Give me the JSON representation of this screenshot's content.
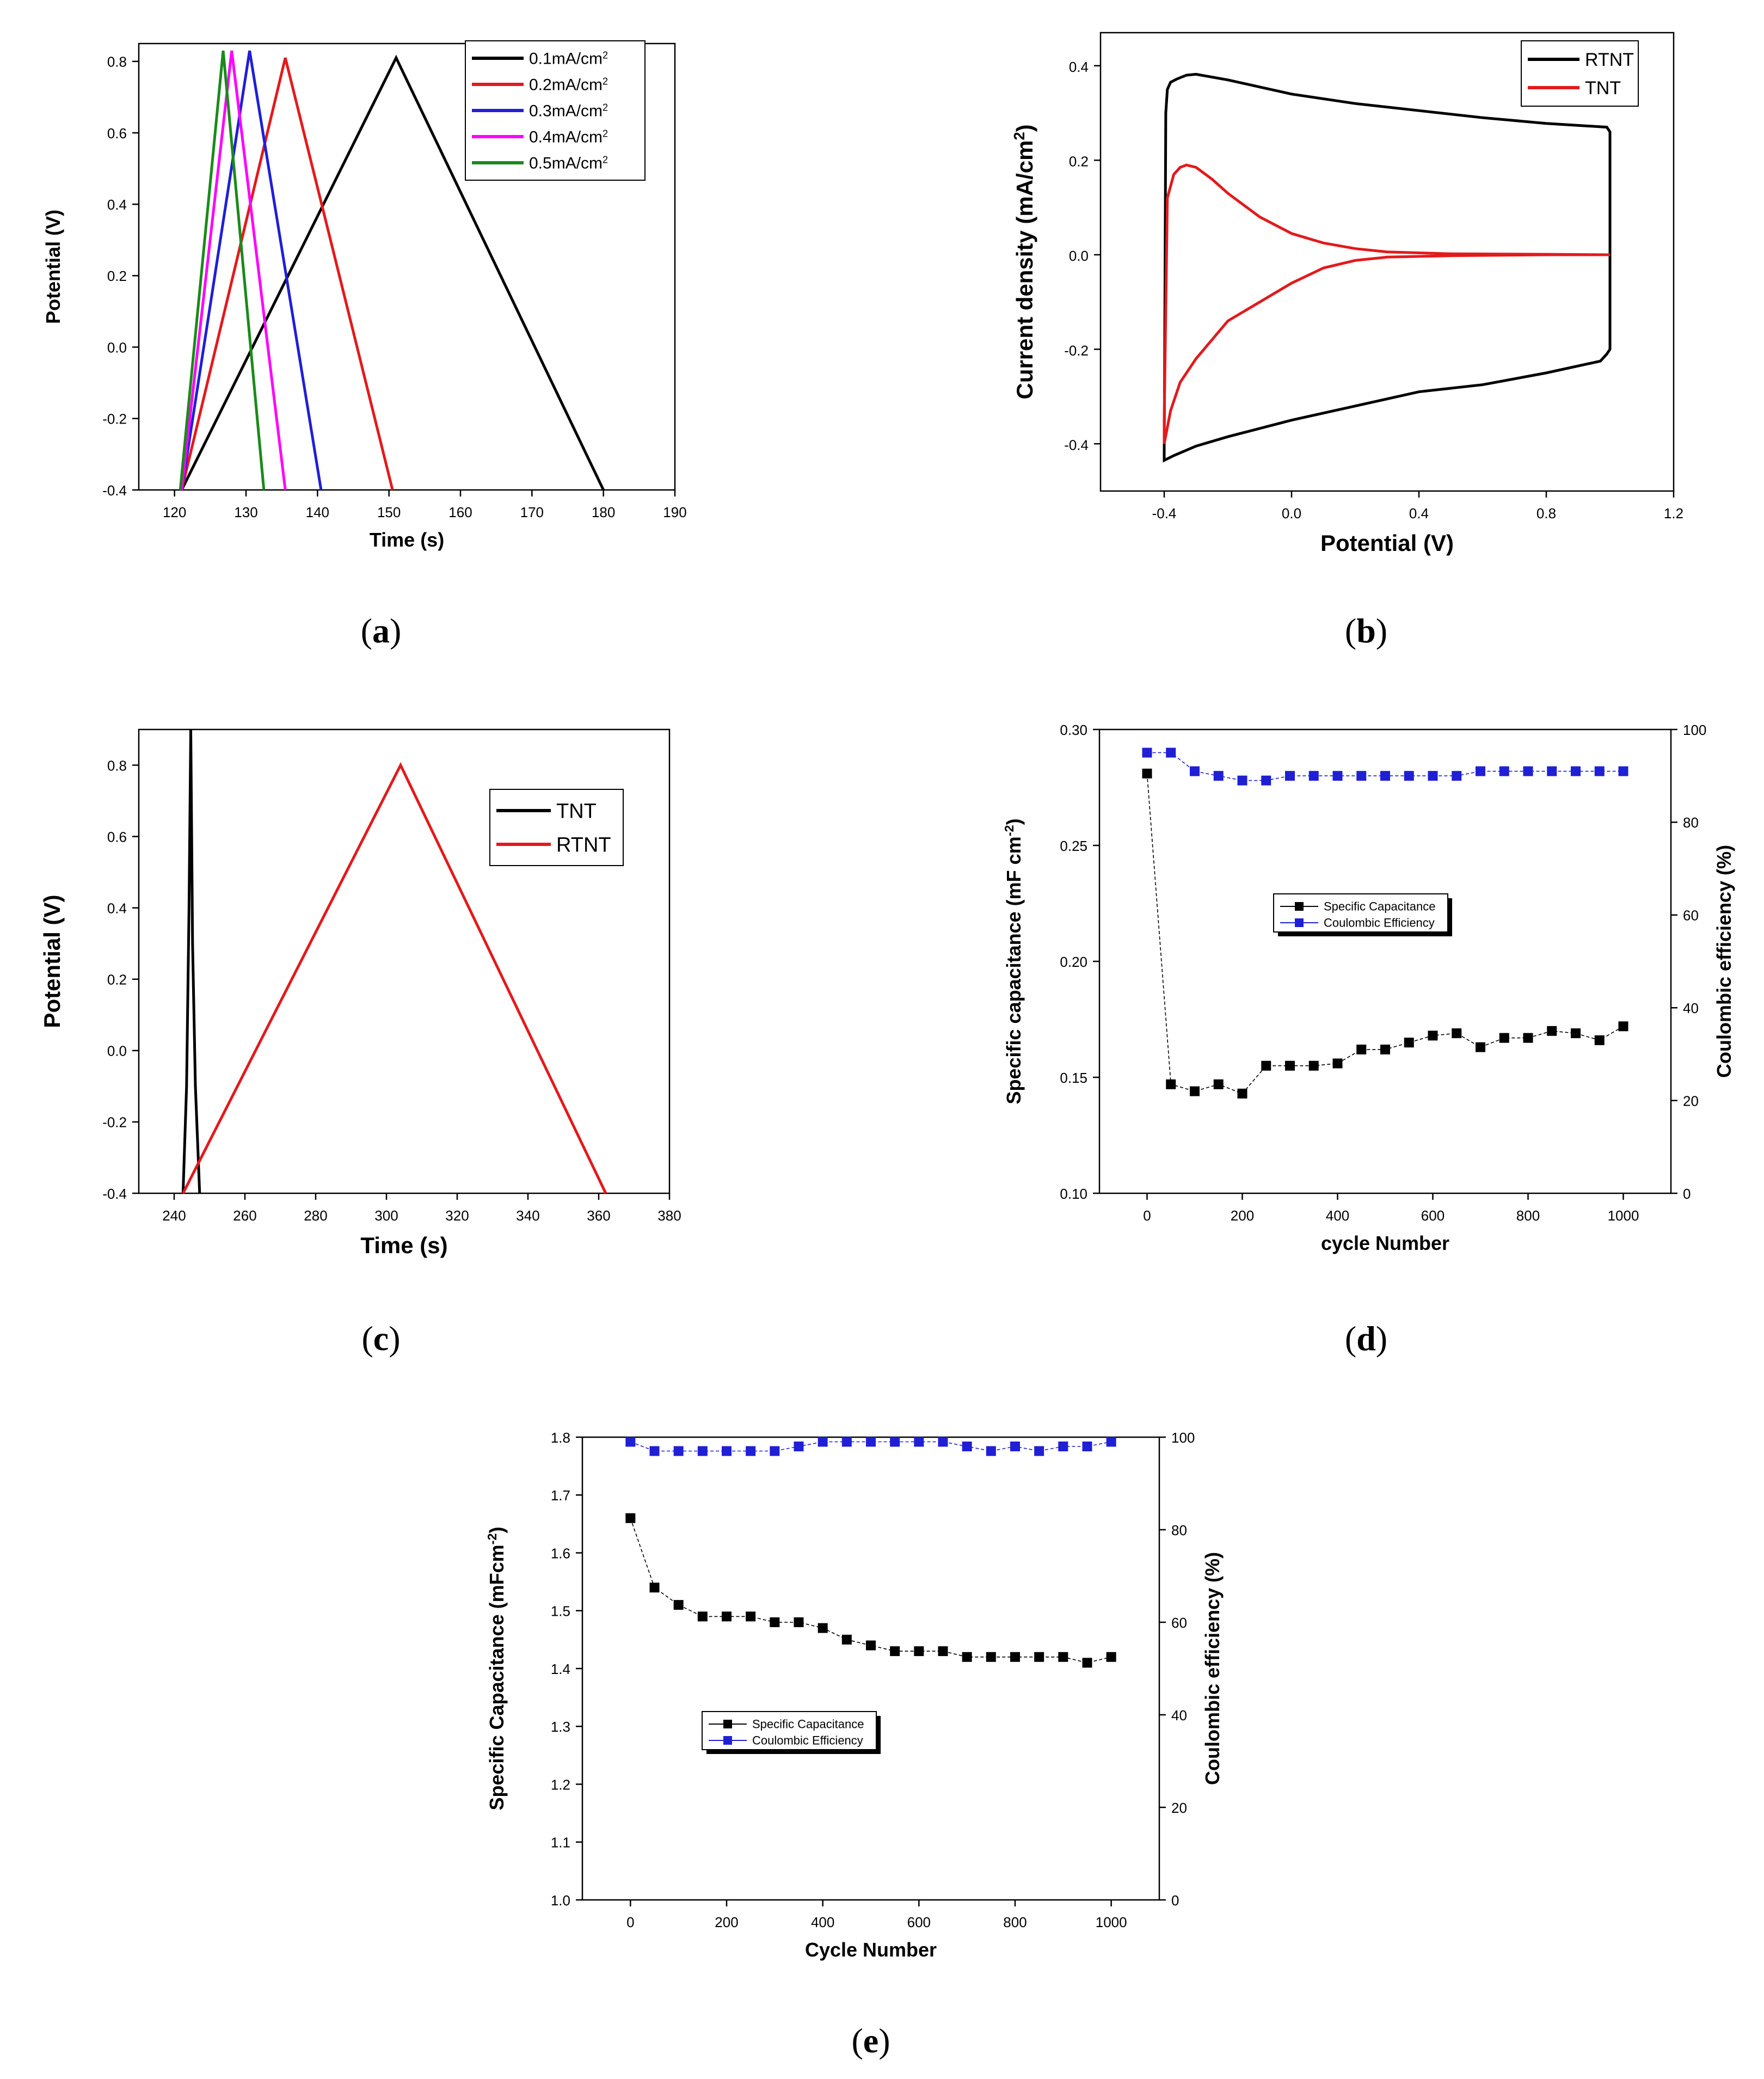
{
  "chart_data": [
    {
      "id": "a",
      "type": "line",
      "caption": "a",
      "xlabel": "Time (s)",
      "ylabel": "Potential (V)",
      "xlim": [
        115,
        190
      ],
      "ylim": [
        -0.4,
        0.85
      ],
      "xticks": [
        120,
        130,
        140,
        150,
        160,
        170,
        180,
        190
      ],
      "yticks": [
        -0.4,
        -0.2,
        0.0,
        0.2,
        0.4,
        0.6,
        0.8
      ],
      "xtick_labels": [
        "120",
        "130",
        "140",
        "150",
        "160",
        "170",
        "180",
        "190"
      ],
      "ytick_labels": [
        "-0.4",
        "-0.2",
        "0.0",
        "0.2",
        "0.4",
        "0.6",
        "0.8"
      ],
      "legend_position": "top-right",
      "series": [
        {
          "name": "0.1mA/cm",
          "sup": "2",
          "color": "#000000",
          "x": [
            121,
            151,
            180
          ],
          "y": [
            -0.4,
            0.81,
            -0.4
          ]
        },
        {
          "name": "0.2mA/cm",
          "sup": "2",
          "color": "#e31a1c",
          "x": [
            121,
            135.5,
            150.5
          ],
          "y": [
            -0.4,
            0.81,
            -0.4
          ]
        },
        {
          "name": "0.3mA/cm",
          "sup": "2",
          "color": "#1f1fd6",
          "x": [
            121,
            130.5,
            140.5
          ],
          "y": [
            -0.4,
            0.83,
            -0.4
          ]
        },
        {
          "name": "0.4mA/cm",
          "sup": "2",
          "color": "#ff00ff",
          "x": [
            121,
            128,
            135.5
          ],
          "y": [
            -0.4,
            0.83,
            -0.4
          ]
        },
        {
          "name": "0.5mA/cm",
          "sup": "2",
          "color": "#1a8a1a",
          "x": [
            120.8,
            126.8,
            132.5
          ],
          "y": [
            -0.4,
            0.83,
            -0.4
          ]
        }
      ]
    },
    {
      "id": "b",
      "type": "line",
      "caption": "b",
      "xlabel": "Potential (V)",
      "ylabel": "Current density (mA/cm",
      "ylabel_sup": "2",
      "ylabel_end": ")",
      "xlim": [
        -0.6,
        1.2
      ],
      "ylim": [
        -0.5,
        0.47
      ],
      "xticks": [
        -0.4,
        0.0,
        0.4,
        0.8,
        1.2
      ],
      "yticks": [
        -0.4,
        -0.2,
        0.0,
        0.2,
        0.4
      ],
      "xtick_labels": [
        "-0.4",
        "0.0",
        "0.4",
        "0.8",
        "1.2"
      ],
      "ytick_labels": [
        "-0.4",
        "-0.2",
        "0.0",
        "0.2",
        "0.4"
      ],
      "legend_position": "top-right",
      "series": [
        {
          "name": "RTNT",
          "color": "#000000",
          "x": [
            -0.4,
            -0.395,
            -0.39,
            -0.38,
            -0.36,
            -0.33,
            -0.3,
            -0.2,
            -0.1,
            0.0,
            0.2,
            0.4,
            0.6,
            0.8,
            0.99,
            1.0,
            1.0,
            0.99,
            0.97,
            0.8,
            0.6,
            0.4,
            0.2,
            0.0,
            -0.2,
            -0.3,
            -0.37,
            -0.4,
            -0.4
          ],
          "y": [
            -0.42,
            0.3,
            0.35,
            0.365,
            0.372,
            0.38,
            0.382,
            0.37,
            0.355,
            0.34,
            0.32,
            0.305,
            0.29,
            0.278,
            0.27,
            0.26,
            -0.2,
            -0.21,
            -0.225,
            -0.25,
            -0.275,
            -0.29,
            -0.32,
            -0.35,
            -0.385,
            -0.405,
            -0.425,
            -0.435,
            -0.42
          ]
        },
        {
          "name": "TNT",
          "color": "#e31a1c",
          "x": [
            -0.4,
            -0.39,
            -0.37,
            -0.35,
            -0.33,
            -0.3,
            -0.25,
            -0.2,
            -0.1,
            0.0,
            0.1,
            0.2,
            0.3,
            0.5,
            0.8,
            1.0,
            0.8,
            0.5,
            0.3,
            0.2,
            0.1,
            0.0,
            -0.1,
            -0.2,
            -0.3,
            -0.35,
            -0.38,
            -0.4,
            -0.4
          ],
          "y": [
            -0.35,
            0.12,
            0.17,
            0.185,
            0.19,
            0.185,
            0.16,
            0.13,
            0.08,
            0.045,
            0.025,
            0.013,
            0.006,
            0.002,
            0.001,
            0.0,
            0.0,
            -0.002,
            -0.005,
            -0.012,
            -0.028,
            -0.06,
            -0.1,
            -0.14,
            -0.22,
            -0.27,
            -0.33,
            -0.4,
            -0.35
          ]
        }
      ]
    },
    {
      "id": "c",
      "type": "line",
      "caption": "c",
      "xlabel": "Time (s)",
      "ylabel": "Potential (V)",
      "xlim": [
        230,
        380
      ],
      "ylim": [
        -0.4,
        0.9
      ],
      "xticks": [
        240,
        260,
        280,
        300,
        320,
        340,
        360,
        380
      ],
      "yticks": [
        -0.4,
        -0.2,
        0.0,
        0.2,
        0.4,
        0.6,
        0.8
      ],
      "xtick_labels": [
        "240",
        "260",
        "280",
        "300",
        "320",
        "340",
        "360",
        "380"
      ],
      "ytick_labels": [
        "-0.4",
        "-0.2",
        "0.0",
        "0.2",
        "0.4",
        "0.6",
        "0.8"
      ],
      "legend_position": "top-right",
      "series": [
        {
          "name": "TNT",
          "color": "#000000",
          "x": [
            242.5,
            243.5,
            244.2,
            244.7,
            245.2,
            246,
            247.2
          ],
          "y": [
            -0.4,
            -0.1,
            0.4,
            0.9,
            0.3,
            -0.1,
            -0.4
          ]
        },
        {
          "name": "RTNT",
          "color": "#e31a1c",
          "x": [
            242.5,
            304,
            362
          ],
          "y": [
            -0.4,
            0.8,
            -0.4
          ]
        }
      ]
    },
    {
      "id": "d",
      "type": "line",
      "caption": "d",
      "xlabel": "cycle Number",
      "ylabel": "Specific capacitance (mF cm",
      "ylabel_sup": "-2",
      "ylabel_end": ")",
      "y2label": "Coulombic efficiency (%)",
      "xlim": [
        -100,
        1100
      ],
      "ylim": [
        0.1,
        0.3
      ],
      "y2lim": [
        0,
        100
      ],
      "xticks": [
        0,
        200,
        400,
        600,
        800,
        1000
      ],
      "yticks": [
        0.1,
        0.15,
        0.2,
        0.25,
        0.3
      ],
      "y2ticks": [
        0,
        20,
        40,
        60,
        80,
        100
      ],
      "xtick_labels": [
        "0",
        "200",
        "400",
        "600",
        "800",
        "1000"
      ],
      "ytick_labels": [
        "0.10",
        "0.15",
        "0.20",
        "0.25",
        "0.30"
      ],
      "y2tick_labels": [
        "0",
        "20",
        "40",
        "60",
        "80",
        "100"
      ],
      "legend_position": "center",
      "x": [
        0,
        50,
        100,
        150,
        200,
        250,
        300,
        350,
        400,
        450,
        500,
        550,
        600,
        650,
        700,
        750,
        800,
        850,
        900,
        950,
        1000
      ],
      "series": [
        {
          "name": "Specific Capacitance",
          "axis": "left",
          "color": "#000000",
          "values": [
            0.281,
            0.147,
            0.144,
            0.147,
            0.143,
            0.155,
            0.155,
            0.155,
            0.156,
            0.162,
            0.162,
            0.165,
            0.168,
            0.169,
            0.163,
            0.167,
            0.167,
            0.17,
            0.169,
            0.166,
            0.172
          ]
        },
        {
          "name": "Coulombic Efficiency",
          "axis": "right",
          "color": "#1f1fd6",
          "values": [
            95,
            95,
            91,
            90,
            89,
            89,
            90,
            90,
            90,
            90,
            90,
            90,
            90,
            90,
            91,
            91,
            91,
            91,
            91,
            91,
            91
          ]
        }
      ]
    },
    {
      "id": "e",
      "type": "line",
      "caption": "e",
      "xlabel": "Cycle Number",
      "ylabel": "Specific Capacitance (mFcm",
      "ylabel_sup": "-2",
      "ylabel_end": ")",
      "y2label": "Coulombic efficiency (%)",
      "xlim": [
        -100,
        1100
      ],
      "ylim": [
        1.0,
        1.8
      ],
      "y2lim": [
        0,
        100
      ],
      "xticks": [
        0,
        200,
        400,
        600,
        800,
        1000
      ],
      "yticks": [
        1.0,
        1.1,
        1.2,
        1.3,
        1.4,
        1.5,
        1.6,
        1.7,
        1.8
      ],
      "y2ticks": [
        0,
        20,
        40,
        60,
        80,
        100
      ],
      "xtick_labels": [
        "0",
        "200",
        "400",
        "600",
        "800",
        "1000"
      ],
      "ytick_labels": [
        "1.0",
        "1.1",
        "1.2",
        "1.3",
        "1.4",
        "1.5",
        "1.6",
        "1.7",
        "1.8"
      ],
      "y2tick_labels": [
        "0",
        "20",
        "40",
        "60",
        "80",
        "100"
      ],
      "legend_position": "lower-left",
      "x": [
        0,
        50,
        100,
        150,
        200,
        250,
        300,
        350,
        400,
        450,
        500,
        550,
        600,
        650,
        700,
        750,
        800,
        850,
        900,
        950,
        1000
      ],
      "series": [
        {
          "name": "Specific Capacitance",
          "axis": "left",
          "color": "#000000",
          "values": [
            1.66,
            1.54,
            1.51,
            1.49,
            1.49,
            1.49,
            1.48,
            1.48,
            1.47,
            1.45,
            1.44,
            1.43,
            1.43,
            1.43,
            1.42,
            1.42,
            1.42,
            1.42,
            1.42,
            1.41,
            1.42
          ]
        },
        {
          "name": "Coulombic Efficiency",
          "axis": "right",
          "color": "#1f1fd6",
          "values": [
            99,
            97,
            97,
            97,
            97,
            97,
            97,
            98,
            99,
            99,
            99,
            99,
            99,
            99,
            98,
            97,
            98,
            97,
            98,
            98,
            99
          ]
        }
      ]
    }
  ]
}
